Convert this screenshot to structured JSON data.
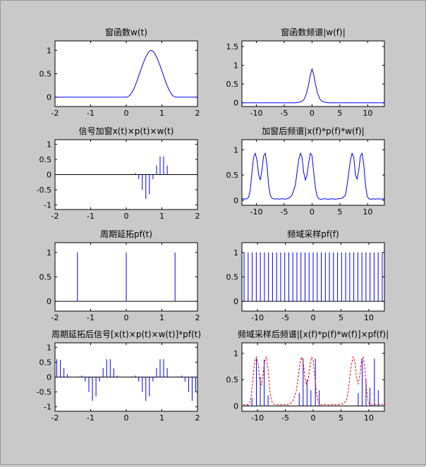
{
  "figure": {
    "background": "#c9c9c9",
    "axes_color": "#ffffff",
    "line_color": "#0000ff",
    "dash_color": "#ff0000"
  },
  "chart_data": [
    {
      "id": "w",
      "type": "line",
      "title": "窗函数w(t)",
      "xlim": [
        -2,
        2
      ],
      "ylim": [
        -0.2,
        1.2
      ],
      "xticks": [
        -2,
        -1,
        0,
        1,
        2
      ],
      "yticks": [
        0,
        0.5,
        1
      ],
      "series": [
        {
          "x": [
            -2,
            0,
            0.05,
            0.1,
            0.15,
            0.2,
            0.25,
            0.3,
            0.35,
            0.4,
            0.45,
            0.5,
            0.55,
            0.6,
            0.65,
            0.7,
            0.75,
            0.8,
            0.85,
            0.9,
            0.95,
            1.0,
            1.05,
            1.1,
            1.15,
            1.2,
            1.25,
            1.3,
            1.35,
            1.4,
            2
          ],
          "y": [
            0,
            0,
            0.01,
            0.04,
            0.09,
            0.16,
            0.24,
            0.34,
            0.45,
            0.56,
            0.67,
            0.77,
            0.86,
            0.93,
            0.98,
            1.0,
            0.98,
            0.93,
            0.86,
            0.77,
            0.67,
            0.56,
            0.45,
            0.34,
            0.24,
            0.16,
            0.09,
            0.04,
            0.01,
            0,
            0
          ]
        }
      ]
    },
    {
      "id": "W",
      "type": "line",
      "title": "窗函数频谱|w(f)|",
      "xlim": [
        -12.6,
        13
      ],
      "ylim": [
        -0.1,
        1.65
      ],
      "xticks": [
        -10,
        -5,
        0,
        5,
        10
      ],
      "yticks": [
        0,
        0.5,
        1,
        1.5
      ],
      "series": [
        {
          "x": [
            -12.6,
            -3,
            -2.5,
            -2.2,
            -1.8,
            -1.4,
            -1,
            -0.6,
            -0.3,
            0,
            0.3,
            0.6,
            1,
            1.4,
            1.8,
            2.2,
            2.5,
            3,
            13
          ],
          "y": [
            0,
            0,
            0.01,
            0.02,
            0.04,
            0.1,
            0.25,
            0.5,
            0.75,
            0.9,
            0.75,
            0.5,
            0.25,
            0.1,
            0.04,
            0.02,
            0.01,
            0,
            0
          ]
        }
      ]
    },
    {
      "id": "xpw",
      "type": "stem",
      "title": "信号加窗x(t)×p(t)×w(t)",
      "xlim": [
        -2,
        2
      ],
      "ylim": [
        -1.15,
        1.15
      ],
      "xticks": [
        -2,
        -1,
        0,
        1,
        2
      ],
      "yticks": [
        -1,
        -0.5,
        0,
        0.5,
        1
      ],
      "series": [
        {
          "x": [
            0.15,
            0.25,
            0.35,
            0.45,
            0.55,
            0.65,
            0.75,
            0.85,
            0.95,
            1.05,
            1.15
          ],
          "y": [
            0.02,
            0.05,
            -0.15,
            -0.5,
            -0.8,
            -0.65,
            -0.15,
            0.3,
            0.6,
            0.6,
            0.3
          ]
        }
      ]
    },
    {
      "id": "XPW",
      "type": "line",
      "title": "加窗后频谱|x(f)*p(f)*w(f)|",
      "xlim": [
        -12.6,
        13
      ],
      "ylim": [
        -0.1,
        1.2
      ],
      "xticks": [
        -10,
        -5,
        0,
        5,
        10
      ],
      "yticks": [
        0,
        0.5,
        1
      ],
      "series": [
        {
          "x": [
            -12.6,
            -12.3,
            -12,
            -11.7,
            -11.4,
            -11.1,
            -10.8,
            -10.5,
            -10.2,
            -9.9,
            -9.6,
            -9.3,
            -9.0,
            -8.7,
            -8.4,
            -8.1,
            -7.8,
            -7.5,
            -7.2,
            -6.9,
            -6.6,
            -6.3,
            -6,
            -5.4,
            -4.8,
            -4.2,
            -3.6,
            -3.0,
            -2.7,
            -2.4,
            -2.1,
            -1.8,
            -1.5,
            -1.2,
            -0.9,
            -0.6,
            -0.3,
            0,
            0.3,
            0.6,
            0.9,
            1.2,
            1.5,
            1.8,
            2.1,
            2.4,
            2.7,
            3.0,
            3.6,
            4.2,
            4.8,
            5.4,
            6.0,
            6.3,
            6.6,
            6.9,
            7.2,
            7.5,
            7.8,
            8.1,
            8.4,
            8.7,
            9.0,
            9.3,
            9.6,
            9.9,
            10.2,
            10.5,
            10.8,
            11.1,
            11.4,
            11.7,
            12.0,
            12.3,
            12.6,
            13
          ],
          "y": [
            0.02,
            0.03,
            0.02,
            0.03,
            0.06,
            0.2,
            0.55,
            0.85,
            0.93,
            0.8,
            0.5,
            0.4,
            0.6,
            0.88,
            0.93,
            0.7,
            0.3,
            0.1,
            0.04,
            0.03,
            0.02,
            0.03,
            0.02,
            0.03,
            0.02,
            0.04,
            0.1,
            0.3,
            0.55,
            0.8,
            0.93,
            0.85,
            0.55,
            0.4,
            0.5,
            0.75,
            0.93,
            0.88,
            0.55,
            0.25,
            0.08,
            0.03,
            0.02,
            0.02,
            0.03,
            0.03,
            0.02,
            0.02,
            0.03,
            0.02,
            0.03,
            0.04,
            0.1,
            0.3,
            0.55,
            0.8,
            0.93,
            0.85,
            0.5,
            0.42,
            0.6,
            0.88,
            0.93,
            0.7,
            0.3,
            0.08,
            0.03,
            0.02,
            0.02,
            0.03,
            0.02,
            0.03,
            0.02,
            0.03,
            0.02,
            0.03
          ]
        }
      ]
    },
    {
      "id": "pf_t",
      "type": "stem",
      "title": "周期延拓pf(t)",
      "xlim": [
        -2,
        2
      ],
      "ylim": [
        -0.2,
        1.2
      ],
      "xticks": [
        -2,
        -1,
        0,
        1,
        2
      ],
      "yticks": [
        0,
        0.5,
        1
      ],
      "series": [
        {
          "x": [
            -1.37,
            0,
            1.37
          ],
          "y": [
            1,
            1,
            1
          ]
        }
      ]
    },
    {
      "id": "pf_f",
      "type": "stem",
      "title": "频域采样pf(f)",
      "xlim": [
        -12.8,
        12.8
      ],
      "ylim": [
        -0.2,
        1.2
      ],
      "xticks": [
        -10,
        -5,
        0,
        5,
        10
      ],
      "yticks": [
        0,
        0.5,
        1
      ],
      "stem_spacing": 0.73,
      "series": [
        {
          "x_start": -12.41,
          "x_end": 12.5,
          "y": 1
        }
      ]
    },
    {
      "id": "periodic",
      "type": "stem",
      "title": "周期延拓后信号[x(t)×p(t)×w(t)]*pf(t)",
      "xlim": [
        -2,
        2
      ],
      "ylim": [
        -1.15,
        1.15
      ],
      "xticks": [
        -2,
        -1,
        0,
        1,
        2
      ],
      "yticks": [
        -1,
        -0.5,
        0,
        0.5,
        1
      ],
      "series": [
        {
          "x": [
            -1.95,
            -1.85,
            -1.75,
            -1.65,
            -1.35,
            -1.25,
            -1.15,
            -1.05,
            -0.95,
            -0.85,
            -0.75,
            -0.65,
            -0.55,
            -0.45,
            -0.35,
            -0.25,
            0.15,
            0.25,
            0.35,
            0.45,
            0.55,
            0.65,
            0.75,
            0.85,
            0.95,
            1.05,
            1.15,
            1.45,
            1.55,
            1.65,
            1.75,
            1.85,
            1.95
          ],
          "y": [
            0.6,
            0.58,
            0.3,
            0.1,
            0.02,
            0.05,
            -0.15,
            -0.5,
            -0.8,
            -0.65,
            -0.15,
            0.3,
            0.6,
            0.6,
            0.3,
            0.05,
            0.02,
            0.05,
            -0.15,
            -0.5,
            -0.8,
            -0.65,
            -0.15,
            0.3,
            0.6,
            0.6,
            0.3,
            0.02,
            0.05,
            -0.15,
            -0.5,
            -0.8,
            -0.5
          ]
        }
      ]
    },
    {
      "id": "sampled_spec",
      "type": "stem",
      "title": "频域采样后频谱|[x(f)*p(f)*w(f)]×pf(f)|",
      "xlim": [
        -12.8,
        12.8
      ],
      "ylim": [
        -0.1,
        1.2
      ],
      "xticks": [
        -10,
        -5,
        0,
        5,
        10
      ],
      "yticks": [
        0,
        0.5,
        1
      ],
      "series": [
        {
          "name": "samples",
          "x": [
            -11.7,
            -11.0,
            -10.2,
            -9.5,
            -8.8,
            -8.1,
            -2.5,
            -1.8,
            -1.1,
            -0.4,
            0.4,
            1.1,
            8.1,
            8.8,
            9.5,
            10.2,
            11.0,
            11.7
          ],
          "y": [
            0.03,
            0.15,
            0.9,
            0.55,
            0.88,
            0.2,
            0.25,
            0.9,
            0.5,
            0.3,
            0.9,
            0.3,
            0.25,
            0.9,
            0.5,
            0.35,
            0.9,
            0.3
          ]
        },
        {
          "name": "envelope",
          "style": "dashed",
          "x": [
            -12.6,
            -12.3,
            -12,
            -11.7,
            -11.4,
            -11.1,
            -10.8,
            -10.5,
            -10.2,
            -9.9,
            -9.6,
            -9.3,
            -9.0,
            -8.7,
            -8.4,
            -8.1,
            -7.8,
            -7.5,
            -7.2,
            -6.9,
            -6.6,
            -6.3,
            -6,
            -5.4,
            -4.8,
            -4.2,
            -3.6,
            -3.0,
            -2.7,
            -2.4,
            -2.1,
            -1.8,
            -1.5,
            -1.2,
            -0.9,
            -0.6,
            -0.3,
            0,
            0.3,
            0.6,
            0.9,
            1.2,
            1.5,
            1.8,
            2.1,
            2.4,
            2.7,
            3.0,
            3.6,
            4.2,
            4.8,
            5.4,
            6.0,
            6.3,
            6.6,
            6.9,
            7.2,
            7.5,
            7.8,
            8.1,
            8.4,
            8.7,
            9.0,
            9.3,
            9.6,
            9.9,
            10.2,
            10.5,
            10.8,
            11.1,
            11.4,
            11.7,
            12.0,
            12.3,
            12.6,
            13
          ],
          "y": [
            0.02,
            0.03,
            0.02,
            0.03,
            0.06,
            0.2,
            0.55,
            0.85,
            0.93,
            0.8,
            0.5,
            0.4,
            0.6,
            0.88,
            0.93,
            0.7,
            0.3,
            0.1,
            0.04,
            0.03,
            0.02,
            0.03,
            0.02,
            0.03,
            0.02,
            0.04,
            0.1,
            0.3,
            0.55,
            0.8,
            0.93,
            0.85,
            0.55,
            0.4,
            0.5,
            0.75,
            0.93,
            0.88,
            0.55,
            0.25,
            0.08,
            0.03,
            0.02,
            0.02,
            0.03,
            0.03,
            0.02,
            0.02,
            0.03,
            0.02,
            0.03,
            0.04,
            0.1,
            0.3,
            0.55,
            0.8,
            0.93,
            0.85,
            0.5,
            0.42,
            0.6,
            0.88,
            0.93,
            0.7,
            0.3,
            0.08,
            0.03,
            0.02,
            0.02,
            0.03,
            0.02,
            0.03,
            0.02,
            0.03,
            0.02,
            0.03
          ]
        }
      ]
    }
  ]
}
